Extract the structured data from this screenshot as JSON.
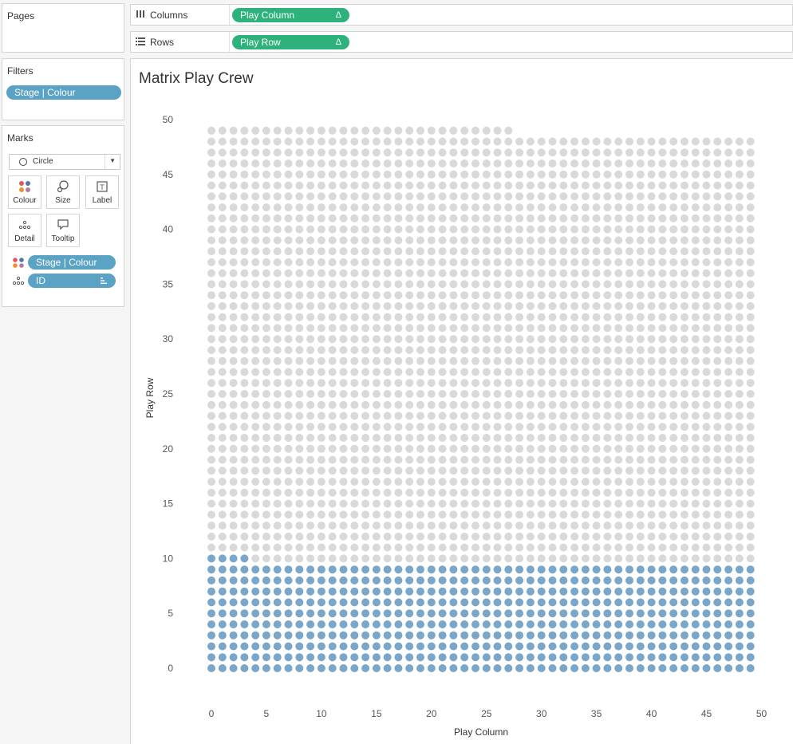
{
  "pages": {
    "title": "Pages"
  },
  "filters": {
    "title": "Filters",
    "pill": "Stage | Colour"
  },
  "marks": {
    "title": "Marks",
    "mark_type": "Circle",
    "buttons": {
      "colour": "Colour",
      "size": "Size",
      "label": "Label",
      "detail": "Detail",
      "tooltip": "Tooltip"
    },
    "fields": [
      {
        "label": "Stage | Colour"
      },
      {
        "label": "ID"
      }
    ]
  },
  "shelves": {
    "columns": {
      "label": "Columns",
      "pill": "Play Column",
      "delta": "Δ"
    },
    "rows": {
      "label": "Rows",
      "pill": "Play Row",
      "delta": "Δ"
    }
  },
  "colors": {
    "highlight": "#7aa6c9",
    "base": "#d9d9d9",
    "pill_blue": "#5ba3c4",
    "pill_green": "#2eb27c"
  },
  "chart_data": {
    "type": "scatter",
    "title": "Matrix Play Crew",
    "xlabel": "Play Column",
    "ylabel": "Play Row",
    "xlim": [
      0,
      50
    ],
    "ylim": [
      0,
      50
    ],
    "xticks": [
      0,
      5,
      10,
      15,
      20,
      25,
      30,
      35,
      40,
      45,
      50
    ],
    "yticks": [
      0,
      5,
      10,
      15,
      20,
      25,
      30,
      35,
      40,
      45,
      50
    ],
    "grid": false,
    "columns": 50,
    "rows_full": 49,
    "top_row_length": 28,
    "series": [
      {
        "rule": "rows 0-9 all 50 columns, plus row 10 columns 0-3",
        "color": "#7aa6c9",
        "count": 504
      },
      {
        "rule": "remaining points",
        "color": "#d9d9d9",
        "count": 1974
      }
    ]
  }
}
